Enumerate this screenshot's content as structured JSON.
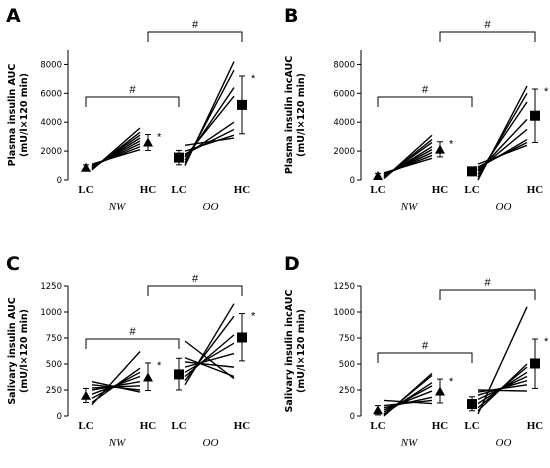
{
  "chart_data": [
    {
      "type": "line",
      "panel_letter": "A",
      "ylabel_line1": "Plasma insulin AUC",
      "ylabel_line2": "(mU/l×120 min)",
      "ylim": [
        0,
        9000
      ],
      "yticks": [
        0,
        2000,
        4000,
        6000,
        8000
      ],
      "categories": [
        "LC",
        "HC",
        "LC",
        "HC"
      ],
      "groups": [
        "NW",
        "OO"
      ],
      "summary": [
        {
          "group": "NW",
          "category": "LC",
          "mean": 850,
          "low": 650,
          "high": 1050,
          "marker": "triangle"
        },
        {
          "group": "NW",
          "category": "HC",
          "mean": 2600,
          "low": 2050,
          "high": 3150,
          "marker": "triangle"
        },
        {
          "group": "OO",
          "category": "LC",
          "mean": 1550,
          "low": 1050,
          "high": 2050,
          "marker": "square"
        },
        {
          "group": "OO",
          "category": "HC",
          "mean": 5200,
          "low": 3200,
          "high": 7200,
          "marker": "square"
        }
      ],
      "paired": {
        "NW": [
          [
            700,
            3600
          ],
          [
            750,
            3300
          ],
          [
            800,
            3100
          ],
          [
            850,
            2900
          ],
          [
            900,
            2700
          ],
          [
            950,
            2500
          ],
          [
            1000,
            2300
          ],
          [
            1100,
            2100
          ]
        ],
        "OO": [
          [
            1000,
            8200
          ],
          [
            1200,
            7600
          ],
          [
            1400,
            6400
          ],
          [
            1600,
            5800
          ],
          [
            1700,
            4000
          ],
          [
            1800,
            3500
          ],
          [
            2000,
            3100
          ],
          [
            2400,
            2900
          ]
        ]
      },
      "significance": [
        "#",
        "#"
      ],
      "stars": [
        "*",
        "*"
      ]
    },
    {
      "type": "line",
      "panel_letter": "B",
      "ylabel_line1": "Plasma insulin incAUC",
      "ylabel_line2": "(mU/l×120 min)",
      "ylim": [
        0,
        9000
      ],
      "yticks": [
        0,
        2000,
        4000,
        6000,
        8000
      ],
      "categories": [
        "LC",
        "HC",
        "LC",
        "HC"
      ],
      "groups": [
        "NW",
        "OO"
      ],
      "summary": [
        {
          "group": "NW",
          "category": "LC",
          "mean": 280,
          "low": 100,
          "high": 460,
          "marker": "triangle"
        },
        {
          "group": "NW",
          "category": "HC",
          "mean": 2100,
          "low": 1600,
          "high": 2650,
          "marker": "triangle"
        },
        {
          "group": "OO",
          "category": "LC",
          "mean": 600,
          "low": 300,
          "high": 900,
          "marker": "square"
        },
        {
          "group": "OO",
          "category": "HC",
          "mean": 4450,
          "low": 2600,
          "high": 6300,
          "marker": "square"
        }
      ],
      "paired": {
        "NW": [
          [
            100,
            3100
          ],
          [
            150,
            2800
          ],
          [
            200,
            2600
          ],
          [
            250,
            2300
          ],
          [
            300,
            2100
          ],
          [
            350,
            1900
          ],
          [
            400,
            1700
          ],
          [
            500,
            1500
          ]
        ],
        "OO": [
          [
            0,
            6500
          ],
          [
            200,
            6000
          ],
          [
            400,
            5400
          ],
          [
            600,
            4200
          ],
          [
            700,
            3500
          ],
          [
            800,
            2800
          ],
          [
            900,
            2600
          ],
          [
            1100,
            2400
          ]
        ]
      },
      "significance": [
        "#",
        "#"
      ],
      "stars": [
        "*",
        "*"
      ]
    },
    {
      "type": "line",
      "panel_letter": "C",
      "ylabel_line1": "Salivary insulin AUC",
      "ylabel_line2": "(mU/l×120 min)",
      "ylim": [
        0,
        1250
      ],
      "yticks": [
        0,
        250,
        500,
        750,
        1000,
        1250
      ],
      "categories": [
        "LC",
        "HC",
        "LC",
        "HC"
      ],
      "groups": [
        "NW",
        "OO"
      ],
      "summary": [
        {
          "group": "NW",
          "category": "LC",
          "mean": 195,
          "low": 130,
          "high": 265,
          "marker": "triangle"
        },
        {
          "group": "NW",
          "category": "HC",
          "mean": 370,
          "low": 245,
          "high": 510,
          "marker": "triangle"
        },
        {
          "group": "OO",
          "category": "LC",
          "mean": 400,
          "low": 250,
          "high": 555,
          "marker": "square"
        },
        {
          "group": "OO",
          "category": "HC",
          "mean": 755,
          "low": 530,
          "high": 985,
          "marker": "square"
        }
      ],
      "paired": {
        "NW": [
          [
            110,
            620
          ],
          [
            130,
            460
          ],
          [
            170,
            420
          ],
          [
            210,
            380
          ],
          [
            250,
            330
          ],
          [
            270,
            290
          ],
          [
            300,
            250
          ],
          [
            330,
            230
          ]
        ],
        "OO": [
          [
            300,
            1080
          ],
          [
            340,
            960
          ],
          [
            380,
            780
          ],
          [
            420,
            700
          ],
          [
            470,
            600
          ],
          [
            520,
            470
          ],
          [
            560,
            380
          ],
          [
            720,
            360
          ]
        ]
      },
      "significance": [
        "#",
        "#"
      ],
      "stars": [
        "*",
        "*"
      ]
    },
    {
      "type": "line",
      "panel_letter": "D",
      "ylabel_line1": "Salivary insulin incAUC",
      "ylabel_line2": "(mU/l×120 min)",
      "ylim": [
        0,
        1250
      ],
      "yticks": [
        0,
        250,
        500,
        750,
        1000,
        1250
      ],
      "categories": [
        "LC",
        "HC",
        "LC",
        "HC"
      ],
      "groups": [
        "NW",
        "OO"
      ],
      "summary": [
        {
          "group": "NW",
          "category": "LC",
          "mean": 55,
          "low": 10,
          "high": 100,
          "marker": "triangle"
        },
        {
          "group": "NW",
          "category": "HC",
          "mean": 235,
          "low": 125,
          "high": 355,
          "marker": "triangle"
        },
        {
          "group": "OO",
          "category": "LC",
          "mean": 115,
          "low": 50,
          "high": 185,
          "marker": "square"
        },
        {
          "group": "OO",
          "category": "HC",
          "mean": 505,
          "low": 265,
          "high": 740,
          "marker": "square"
        }
      ],
      "paired": {
        "NW": [
          [
            0,
            410
          ],
          [
            10,
            390
          ],
          [
            20,
            320
          ],
          [
            40,
            290
          ],
          [
            60,
            240
          ],
          [
            80,
            180
          ],
          [
            100,
            150
          ],
          [
            150,
            120
          ]
        ],
        "OO": [
          [
            20,
            1050
          ],
          [
            50,
            500
          ],
          [
            80,
            470
          ],
          [
            120,
            420
          ],
          [
            160,
            380
          ],
          [
            200,
            340
          ],
          [
            230,
            300
          ],
          [
            250,
            240
          ]
        ]
      },
      "significance": [
        "#",
        "#"
      ],
      "stars": [
        "*",
        "*"
      ]
    }
  ]
}
